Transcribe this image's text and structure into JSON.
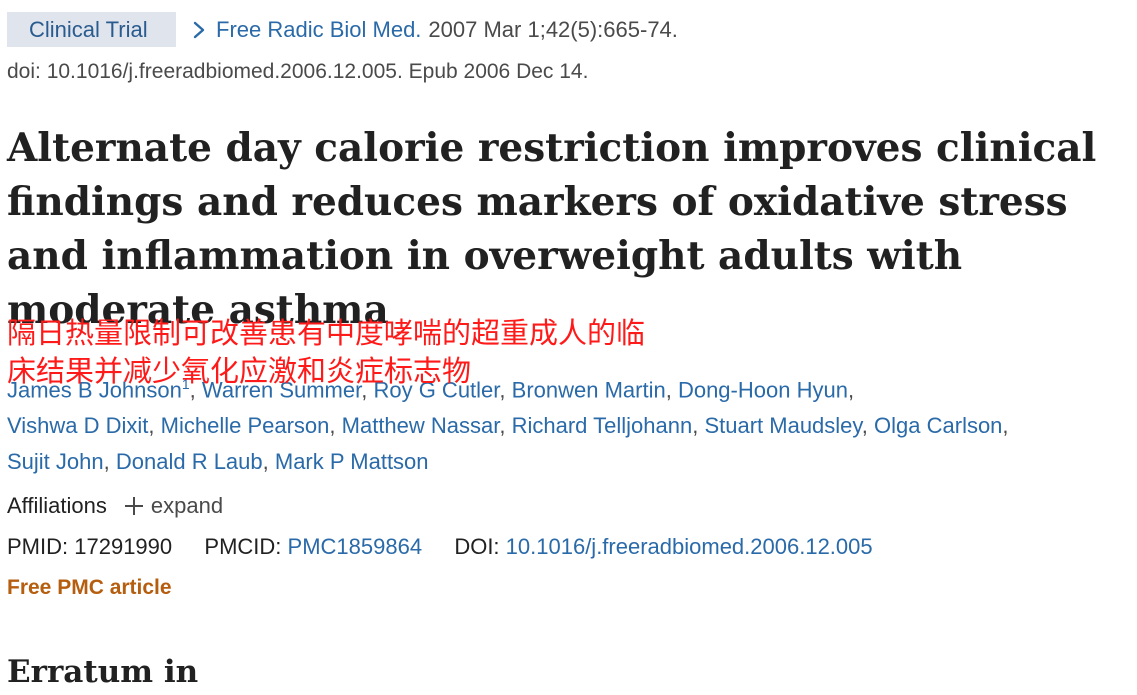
{
  "header": {
    "badge": "Clinical Trial",
    "journal": "Free Radic Biol Med.",
    "citation": "2007 Mar 1;42(5):665-74.",
    "doi_line": "doi: 10.1016/j.freeradbiomed.2006.12.005. Epub 2006 Dec 14."
  },
  "article": {
    "title": "Alternate day calorie restriction improves clinical findings and reduces markers of oxidative stress and inflammation in overweight adults with moderate asthma",
    "overlay_translation": "隔日热量限制可改善患有中度哮喘的超重成人的临床结果并减少氧化应激和炎症标志物"
  },
  "authors": [
    "James B Johnson",
    "Warren Summer",
    "Roy G Cutler",
    "Bronwen Martin",
    "Dong-Hoon Hyun",
    "Vishwa D Dixit",
    "Michelle Pearson",
    "Matthew Nassar",
    "Richard Telljohann",
    "Stuart Maudsley",
    "Olga Carlson",
    "Sujit John",
    "Donald R Laub",
    "Mark P Mattson"
  ],
  "author_footnote": "1",
  "affiliations": {
    "label": "Affiliations",
    "expand_label": "expand"
  },
  "identifiers": {
    "pmid_label": "PMID:",
    "pmid": "17291990",
    "pmcid_label": "PMCID:",
    "pmcid": "PMC1859864",
    "doi_label": "DOI:",
    "doi": "10.1016/j.freeradbiomed.2006.12.005"
  },
  "free_pmc": "Free PMC article",
  "erratum_heading": "Erratum in",
  "colors": {
    "link": "#2a6aa8",
    "badge_bg": "#dfe4ed",
    "overlay_text": "#ff1a1a",
    "free_pmc": "#b65e0f"
  },
  "icons": [
    "chevron-right-icon",
    "plus-icon"
  ]
}
